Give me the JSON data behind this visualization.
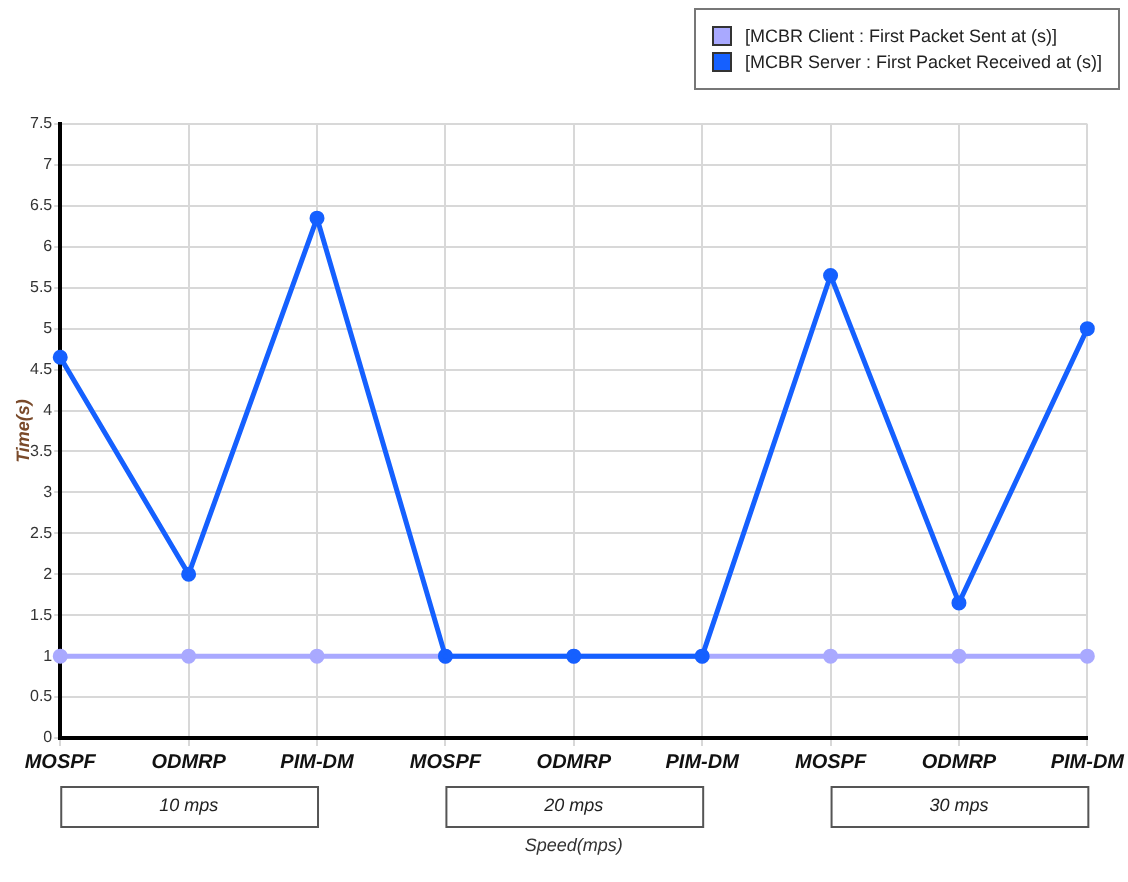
{
  "chart_data": {
    "type": "line",
    "xlabel": "Speed(mps)",
    "ylabel": "Time(s)",
    "categories": [
      "MOSPF",
      "ODMRP",
      "PIM-DM",
      "MOSPF",
      "ODMRP",
      "PIM-DM",
      "MOSPF",
      "ODMRP",
      "PIM-DM"
    ],
    "series": [
      {
        "name": "[MCBR Client : First Packet Sent at (s)]",
        "color": "#a9a9ff",
        "values": [
          1,
          1,
          1,
          1,
          1,
          1,
          1,
          1,
          1
        ]
      },
      {
        "name": "[MCBR Server : First Packet Received at (s)]",
        "color": "#1560ff",
        "values": [
          4.65,
          2.0,
          6.35,
          1.0,
          1.0,
          1.0,
          5.65,
          1.65,
          5.0
        ]
      }
    ],
    "annotations": [
      "10 mps",
      "20 mps",
      "30 mps"
    ],
    "ylim": [
      0,
      7.5
    ],
    "yticks": [
      0,
      0.5,
      1,
      1.5,
      2,
      2.5,
      3,
      3.5,
      4,
      4.5,
      5,
      5.5,
      6,
      6.5,
      7,
      7.5
    ],
    "grid": true,
    "legend": "top right",
    "marker": "circle",
    "line_style": "solid"
  }
}
